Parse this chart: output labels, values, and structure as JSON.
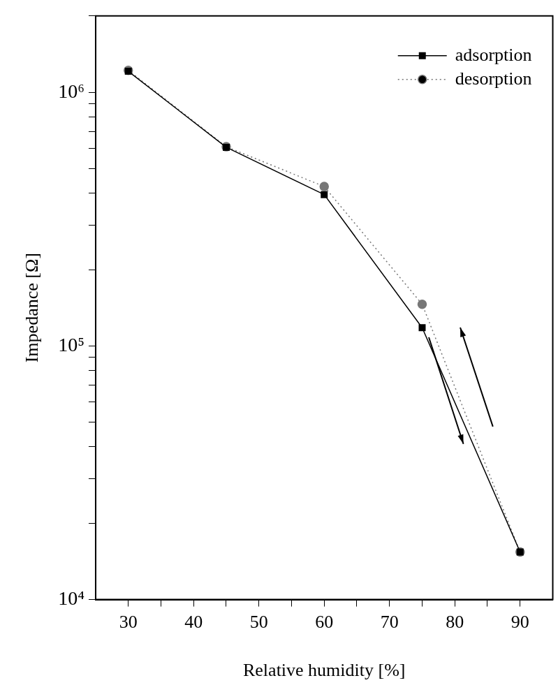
{
  "chart_data": {
    "type": "line",
    "xlabel": "Relative humidity [%]",
    "ylabel": "Impedance [Ω]",
    "log": "y",
    "grid": false,
    "legend": "top right",
    "xlim": [
      25,
      95
    ],
    "xticks": [
      30,
      {
        "value": 35,
        "label": null
      },
      40,
      {
        "value": 45,
        "label": null
      },
      50,
      {
        "value": 55,
        "label": null
      },
      60,
      {
        "value": 65,
        "label": null
      },
      70,
      {
        "value": 75,
        "label": null
      },
      80,
      {
        "value": 85,
        "label": null
      },
      90
    ],
    "ylim": [
      10000,
      2000000
    ],
    "yticks": [
      {
        "value": 10000,
        "label": "10⁴"
      },
      {
        "value": 20000,
        "label": null
      },
      {
        "value": 30000,
        "label": null
      },
      {
        "value": 40000,
        "label": null
      },
      {
        "value": 50000,
        "label": null
      },
      {
        "value": 60000,
        "label": null
      },
      {
        "value": 70000,
        "label": null
      },
      {
        "value": 80000,
        "label": null
      },
      {
        "value": 90000,
        "label": null
      },
      {
        "value": 100000,
        "label": "10⁵"
      },
      {
        "value": 200000,
        "label": null
      },
      {
        "value": 300000,
        "label": null
      },
      {
        "value": 400000,
        "label": null
      },
      {
        "value": 500000,
        "label": null
      },
      {
        "value": 600000,
        "label": null
      },
      {
        "value": 700000,
        "label": null
      },
      {
        "value": 800000,
        "label": null
      },
      {
        "value": 900000,
        "label": null
      },
      {
        "value": 1000000,
        "label": "10⁶"
      },
      {
        "value": 2000000,
        "label": null
      }
    ],
    "x": [
      30,
      45,
      60,
      75,
      90
    ],
    "series": [
      {
        "name": "adsorption",
        "color": "#000000",
        "marker": "square",
        "line_style": "solid",
        "values": [
          1210000,
          607000,
          395000,
          118000,
          15400
        ]
      },
      {
        "name": "desorption",
        "color": "#777777",
        "marker": "circle",
        "line_style": "dotted",
        "values": [
          1220000,
          610000,
          425000,
          146000,
          15400
        ]
      }
    ]
  }
}
